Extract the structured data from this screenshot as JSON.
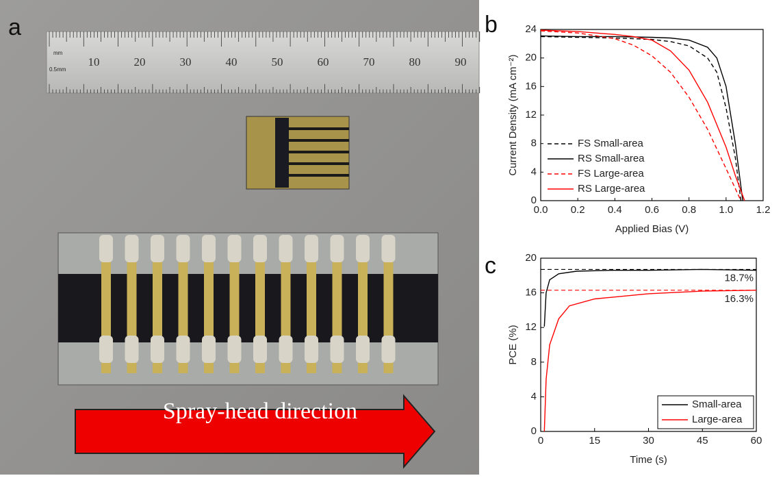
{
  "panels": [
    "a",
    "b",
    "c"
  ],
  "photo": {
    "ruler_units": [
      "mm",
      "0.5mm"
    ],
    "ruler_numbers": [
      "10",
      "20",
      "30",
      "40",
      "50",
      "60",
      "70",
      "80",
      "90"
    ],
    "caption": "Spray-head direction"
  },
  "chart_data": [
    {
      "type": "line",
      "x_label": "Applied Bias (V)",
      "y_label": "Current Density (mA cm⁻²)",
      "xlim": [
        0,
        1.2
      ],
      "ylim": [
        0,
        24
      ],
      "xticks": [
        {
          "value": 0,
          "label": "0.0"
        },
        {
          "value": 0.2,
          "label": "0.2"
        },
        {
          "value": 0.4,
          "label": "0.4"
        },
        {
          "value": 0.6,
          "label": "0.6"
        },
        {
          "value": 0.8,
          "label": "0.8"
        },
        {
          "value": 1,
          "label": "1.0"
        },
        {
          "value": 1.2,
          "label": "1.2"
        }
      ],
      "yticks": [
        0,
        4,
        8,
        12,
        16,
        20,
        24
      ],
      "legend": "lower left",
      "series": [
        {
          "name": "FS Small-area",
          "color": "#000000",
          "dash": true,
          "x": [
            0,
            0.2,
            0.4,
            0.6,
            0.7,
            0.8,
            0.9,
            0.95,
            1.0,
            1.05,
            1.08
          ],
          "values": [
            23.0,
            22.9,
            22.8,
            22.6,
            22.3,
            21.7,
            20.0,
            18.0,
            13.0,
            6.0,
            0
          ]
        },
        {
          "name": "RS Small-area",
          "color": "#000000",
          "dash": false,
          "x": [
            0,
            0.2,
            0.4,
            0.6,
            0.7,
            0.8,
            0.9,
            0.95,
            1.0,
            1.05,
            1.09
          ],
          "values": [
            23.1,
            23.0,
            23.0,
            22.9,
            22.8,
            22.5,
            21.5,
            20.0,
            16.0,
            8.0,
            0
          ]
        },
        {
          "name": "FS Large-area",
          "color": "#ff0000",
          "dash": true,
          "x": [
            0,
            0.2,
            0.4,
            0.5,
            0.6,
            0.7,
            0.8,
            0.9,
            1.0,
            1.08
          ],
          "values": [
            23.8,
            23.5,
            22.7,
            21.8,
            20.3,
            18.0,
            14.5,
            10.0,
            4.5,
            0
          ]
        },
        {
          "name": "RS Large-area",
          "color": "#ff0000",
          "dash": false,
          "x": [
            0,
            0.2,
            0.4,
            0.5,
            0.6,
            0.7,
            0.8,
            0.9,
            1.0,
            1.05,
            1.1
          ],
          "values": [
            23.9,
            23.7,
            23.3,
            23.0,
            22.5,
            21.0,
            18.3,
            13.8,
            7.5,
            3.5,
            0
          ]
        }
      ]
    },
    {
      "type": "line",
      "x_label": "Time (s)",
      "y_label": "PCE (%)",
      "xlim": [
        0,
        60
      ],
      "ylim": [
        0,
        20
      ],
      "xticks": [
        0,
        15,
        30,
        45,
        60
      ],
      "yticks": [
        0,
        4,
        8,
        12,
        16,
        20
      ],
      "legend": "lower right",
      "hlines": [
        {
          "value": 18.7,
          "label": "18.7%",
          "color": "#000000"
        },
        {
          "value": 16.3,
          "label": "16.3%",
          "color": "#ff0000"
        }
      ],
      "series": [
        {
          "name": "Small-area",
          "color": "#000000",
          "dash": false,
          "x": [
            1,
            1.5,
            2.5,
            5,
            10,
            20,
            30,
            45,
            60
          ],
          "values": [
            12.1,
            16.0,
            17.5,
            18.2,
            18.5,
            18.6,
            18.6,
            18.7,
            18.6
          ]
        },
        {
          "name": "Large-area",
          "color": "#ff0000",
          "dash": false,
          "x": [
            1,
            1.5,
            2.5,
            5,
            8,
            15,
            30,
            45,
            60
          ],
          "values": [
            0,
            6.0,
            10.0,
            13.0,
            14.5,
            15.3,
            15.9,
            16.2,
            16.3
          ]
        }
      ]
    }
  ]
}
